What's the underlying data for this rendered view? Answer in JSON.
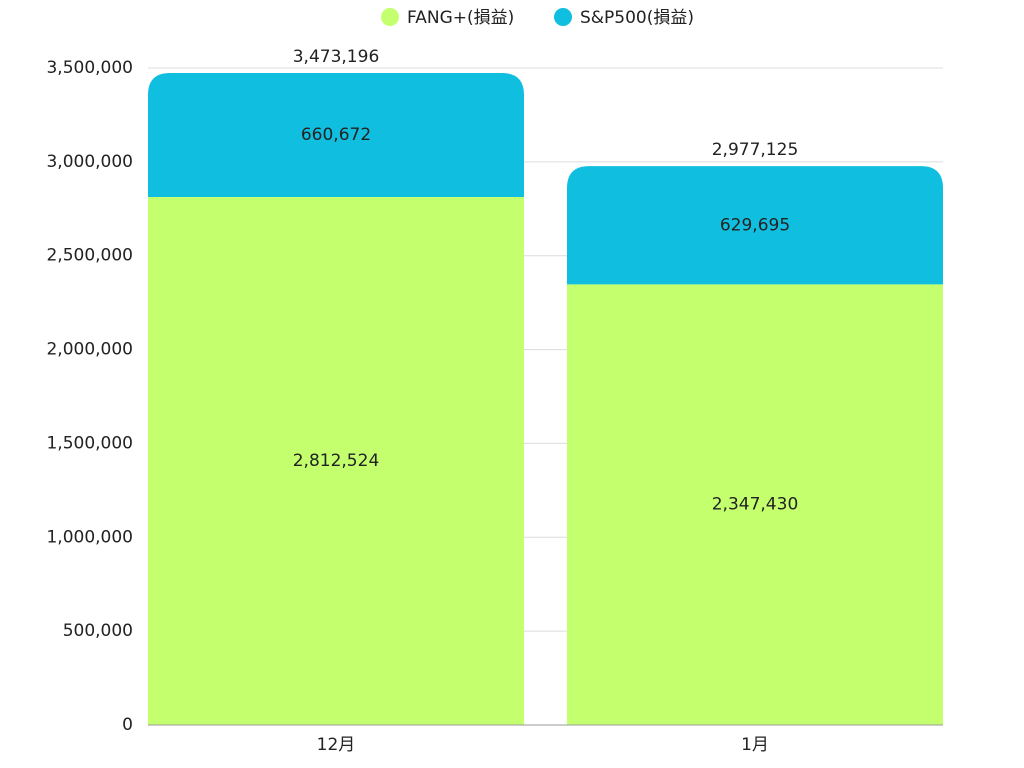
{
  "chart_data": {
    "type": "stacked_bar",
    "categories": [
      "12月",
      "1月"
    ],
    "series": [
      {
        "name": "FANG+(損益)",
        "color": "#c4ff6e",
        "values": [
          2812524,
          2347430
        ],
        "value_labels": [
          "2,812,524",
          "2,347,430"
        ]
      },
      {
        "name": "S&P500(損益)",
        "color": "#10bfdf",
        "values": [
          660672,
          629695
        ],
        "value_labels": [
          "660,672",
          "629,695"
        ]
      }
    ],
    "totals": {
      "values": [
        3473196,
        2977125
      ],
      "value_labels": [
        "3,473,196",
        "2,977,125"
      ]
    },
    "ylim": [
      0,
      3500000
    ],
    "yticks": [
      0,
      {
        "value": 500000,
        "label": "500,000"
      },
      {
        "value": 1000000,
        "label": "1,000,000"
      },
      {
        "value": 1500000,
        "label": "1,500,000"
      },
      {
        "value": 2000000,
        "label": "2,000,000"
      },
      {
        "value": 2500000,
        "label": "2,500,000"
      },
      {
        "value": 3000000,
        "label": "3,000,000"
      },
      {
        "value": 3500000,
        "label": "3,500,000"
      }
    ],
    "grid": true,
    "legend": "top"
  }
}
